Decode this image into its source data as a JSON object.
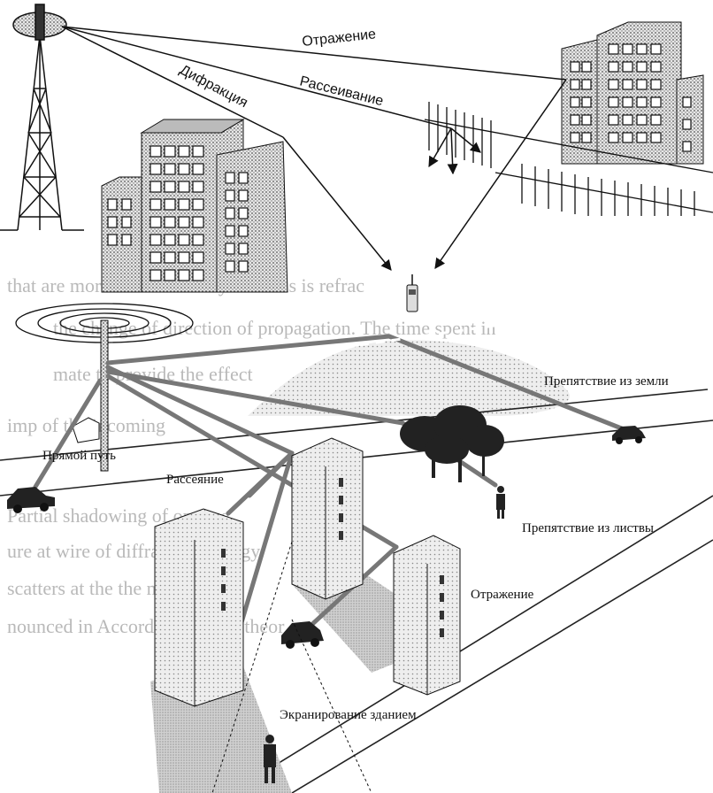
{
  "labels": {
    "reflection_top": "Отражение",
    "scattering_top": "Рассеивание",
    "diffraction": "Дифракция",
    "ground_obstacle": "Препятствие из земли",
    "direct_path": "Прямой путь",
    "scattering": "Рассеяние",
    "foliage_obstacle": "Препятствие из листвы",
    "reflection_bottom": "Отражение",
    "building_shadowing": "Экранирование зданием"
  },
  "background_text": [
    "that are more dense than dry air. This is refrac",
    "the change of direction of propagation. The time spent in",
    "mate to provide the effect",
    "imp of the incoming",
    "Partial shadowing of opaque",
    "ure at wire of diffraction, energy",
    "scatters at the the more pro-",
    "nounced in According to field theor"
  ]
}
